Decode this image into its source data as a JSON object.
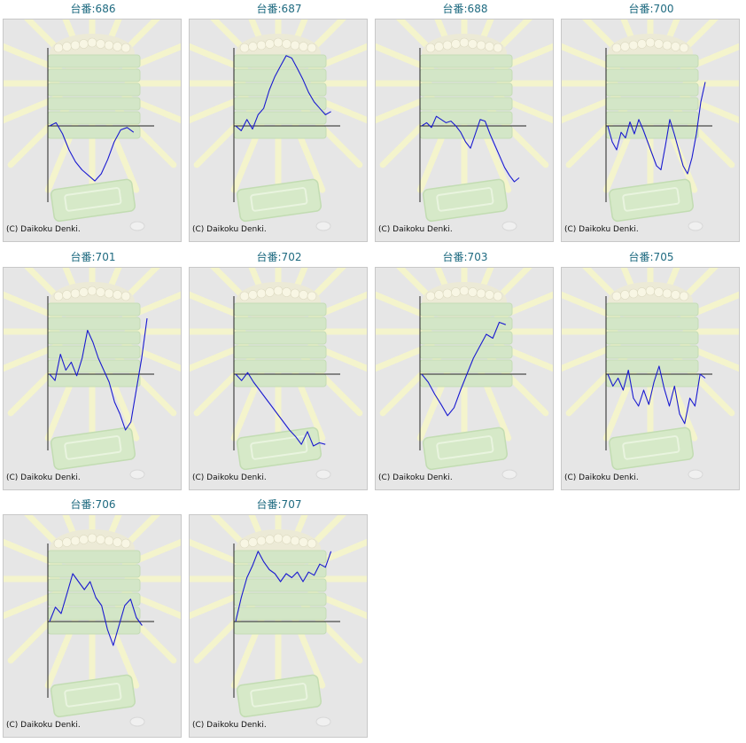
{
  "page": {
    "bg": "#ffffff",
    "title_color": "#1e6a80",
    "line_color": "#1a1ad0"
  },
  "chart_data": [
    {
      "type": "line",
      "title": "台番:686",
      "copyright": "(C) Daikoku Denki.",
      "series": [
        {
          "values": [
            0,
            4,
            -10,
            -30,
            -45,
            -55,
            -62,
            -69,
            -60,
            -42,
            -20,
            -5,
            -2,
            -8
          ]
        }
      ]
    },
    {
      "type": "line",
      "title": "台番:687",
      "copyright": "(C) Daikoku Denki.",
      "series": [
        {
          "values": [
            0,
            -6,
            8,
            -4,
            14,
            22,
            45,
            62,
            75,
            88,
            85,
            72,
            58,
            42,
            30,
            22,
            14,
            18
          ]
        }
      ]
    },
    {
      "type": "line",
      "title": "台番:688",
      "copyright": "(C) Daikoku Denki.",
      "series": [
        {
          "values": [
            0,
            4,
            -2,
            12,
            8,
            4,
            6,
            0,
            -8,
            -20,
            -28,
            -10,
            8,
            6,
            -10,
            -24,
            -38,
            -52,
            -62,
            -70,
            -65
          ]
        }
      ]
    },
    {
      "type": "line",
      "title": "台番:700",
      "copyright": "(C) Daikoku Denki.",
      "series": [
        {
          "values": [
            0,
            -20,
            -30,
            -8,
            -15,
            5,
            -10,
            8,
            -5,
            -20,
            -35,
            -50,
            -55,
            -25,
            8,
            -10,
            -30,
            -50,
            -60,
            -40,
            -10,
            30,
            55
          ]
        }
      ]
    },
    {
      "type": "line",
      "title": "台番:701",
      "copyright": "(C) Daikoku Denki.",
      "series": [
        {
          "values": [
            0,
            -8,
            25,
            5,
            15,
            -2,
            20,
            55,
            40,
            20,
            5,
            -10,
            -35,
            -50,
            -70,
            -60,
            -20,
            20,
            70
          ]
        }
      ]
    },
    {
      "type": "line",
      "title": "台番:702",
      "copyright": "(C) Daikoku Denki.",
      "series": [
        {
          "values": [
            0,
            -8,
            2,
            -10,
            -20,
            -30,
            -40,
            -50,
            -60,
            -70,
            -78,
            -88,
            -72,
            -90,
            -86,
            -88
          ]
        }
      ]
    },
    {
      "type": "line",
      "title": "台番:703",
      "copyright": "(C) Daikoku Denki.",
      "series": [
        {
          "values": [
            0,
            -10,
            -25,
            -38,
            -52,
            -42,
            -20,
            0,
            20,
            35,
            50,
            45,
            65,
            62
          ]
        }
      ]
    },
    {
      "type": "line",
      "title": "台番:705",
      "copyright": "(C) Daikoku Denki.",
      "series": [
        {
          "values": [
            0,
            -15,
            -5,
            -20,
            5,
            -30,
            -40,
            -20,
            -38,
            -10,
            10,
            -18,
            -40,
            -15,
            -50,
            -62,
            -30,
            -40,
            0,
            -5
          ]
        }
      ]
    },
    {
      "type": "line",
      "title": "台番:706",
      "copyright": "(C) Daikoku Denki.",
      "series": [
        {
          "values": [
            0,
            18,
            10,
            35,
            60,
            50,
            40,
            50,
            30,
            20,
            -10,
            -30,
            -5,
            20,
            28,
            5,
            -5
          ]
        }
      ]
    },
    {
      "type": "line",
      "title": "台番:707",
      "copyright": "(C) Daikoku Denki.",
      "series": [
        {
          "values": [
            0,
            30,
            55,
            70,
            88,
            75,
            65,
            60,
            50,
            60,
            55,
            62,
            50,
            62,
            58,
            72,
            68,
            88
          ]
        }
      ]
    }
  ]
}
